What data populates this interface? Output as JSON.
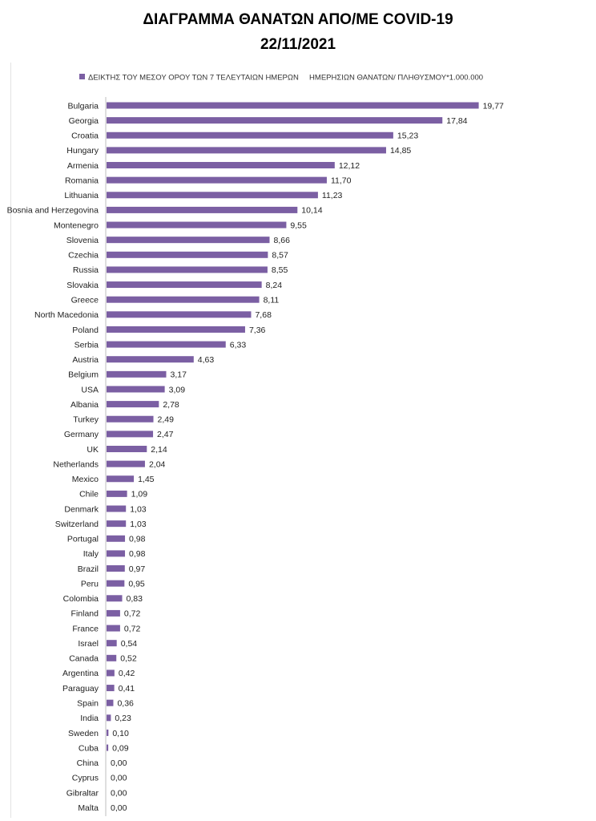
{
  "title": "ΔΙΑΓΡΑΜΜΑ ΘΑΝΑΤΩΝ ΑΠΟ/ΜΕ COVID-19",
  "subtitle": "22/11/2021",
  "chart_data": {
    "type": "bar",
    "orientation": "horizontal",
    "legend": {
      "label": "ΔΕΙΚΤΗΣ ΤΟΥ ΜΕΣΟΥ ΟΡΟΥ ΤΩΝ 7 ΤΕΛΕΥΤΑΙΩΝ ΗΜΕΡΩΝ     ΗΜΕΡΗΣΙΩΝ ΘΑΝΑΤΩΝ/ ΠΛΗΘΥΣΜΟΥ*1.000.000",
      "position": "top"
    },
    "bar_color": "#7b5fa3",
    "xlim": [
      0,
      20
    ],
    "grid": false,
    "categories": [
      "Bulgaria",
      "Georgia",
      "Croatia",
      "Hungary",
      "Armenia",
      "Romania",
      "Lithuania",
      "Bosnia and Herzegovina",
      "Montenegro",
      "Slovenia",
      "Czechia",
      "Russia",
      "Slovakia",
      "Greece",
      "North Macedonia",
      "Poland",
      "Serbia",
      "Austria",
      "Belgium",
      "USA",
      "Albania",
      "Turkey",
      "Germany",
      "UK",
      "Netherlands",
      "Mexico",
      "Chile",
      "Denmark",
      "Switzerland",
      "Portugal",
      "Italy",
      "Brazil",
      "Peru",
      "Colombia",
      "Finland",
      "France",
      "Israel",
      "Canada",
      "Argentina",
      "Paraguay",
      "Spain",
      "India",
      "Sweden",
      "Cuba",
      "China",
      "Cyprus",
      "Gibraltar",
      "Malta"
    ],
    "values": [
      19.77,
      17.84,
      15.23,
      14.85,
      12.12,
      11.7,
      11.23,
      10.14,
      9.55,
      8.66,
      8.57,
      8.55,
      8.24,
      8.11,
      7.68,
      7.36,
      6.33,
      4.63,
      3.17,
      3.09,
      2.78,
      2.49,
      2.47,
      2.14,
      2.04,
      1.45,
      1.09,
      1.03,
      1.03,
      0.98,
      0.98,
      0.97,
      0.95,
      0.83,
      0.72,
      0.72,
      0.54,
      0.52,
      0.42,
      0.41,
      0.36,
      0.23,
      0.1,
      0.09,
      0.0,
      0.0,
      0.0,
      0.0
    ],
    "value_labels": [
      "19,77",
      "17,84",
      "15,23",
      "14,85",
      "12,12",
      "11,70",
      "11,23",
      "10,14",
      "9,55",
      "8,66",
      "8,57",
      "8,55",
      "8,24",
      "8,11",
      "7,68",
      "7,36",
      "6,33",
      "4,63",
      "3,17",
      "3,09",
      "2,78",
      "2,49",
      "2,47",
      "2,14",
      "2,04",
      "1,45",
      "1,09",
      "1,03",
      "1,03",
      "0,98",
      "0,98",
      "0,97",
      "0,95",
      "0,83",
      "0,72",
      "0,72",
      "0,54",
      "0,52",
      "0,42",
      "0,41",
      "0,36",
      "0,23",
      "0,10",
      "0,09",
      "0,00",
      "0,00",
      "0,00",
      "0,00"
    ]
  }
}
